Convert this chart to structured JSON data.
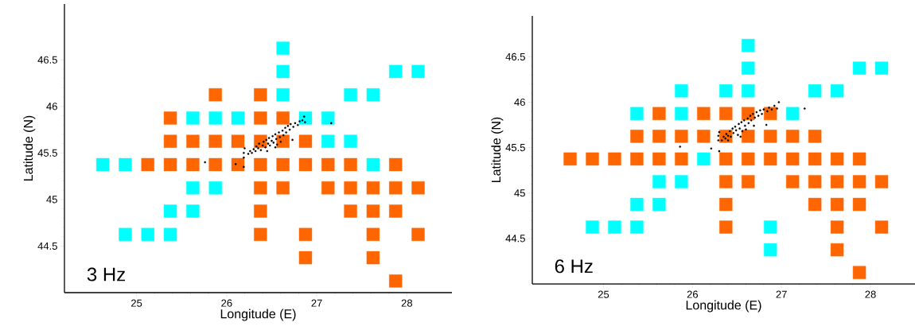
{
  "chart_data": [
    {
      "type": "scatter",
      "xlabel": "Longitude (E)",
      "ylabel": "Latitude (N)",
      "annotations": [
        "3 Hz"
      ],
      "xlim": [
        24.2,
        28.5
      ],
      "ylim": [
        44.0,
        47.1
      ],
      "xticks": [
        25,
        26,
        27,
        28
      ],
      "yticks": [
        44.5,
        45,
        45.5,
        46,
        46.5
      ],
      "series": [
        {
          "color": "#ff6600",
          "marker": "square",
          "x": [
            25.875,
            26.375,
            25.375,
            26.375,
            26.625,
            25.375,
            25.625,
            25.875,
            26.125,
            26.375,
            26.625,
            26.875,
            25.125,
            25.375,
            25.625,
            25.875,
            26.125,
            26.375,
            26.625,
            26.875,
            27.125,
            27.375,
            27.875,
            26.375,
            26.625,
            27.125,
            27.375,
            27.625,
            27.875,
            28.125,
            26.375,
            27.375,
            27.625,
            27.875,
            26.375,
            26.875,
            27.625,
            28.125,
            26.875,
            27.625,
            27.875
          ],
          "values": [
            46.125,
            46.125,
            45.875,
            45.875,
            45.875,
            45.625,
            45.625,
            45.625,
            45.625,
            45.625,
            45.625,
            45.625,
            45.375,
            45.375,
            45.375,
            45.375,
            45.375,
            45.375,
            45.375,
            45.375,
            45.375,
            45.375,
            45.375,
            45.125,
            45.125,
            45.125,
            45.125,
            45.125,
            45.125,
            45.125,
            44.875,
            44.875,
            44.875,
            44.875,
            44.625,
            44.625,
            44.625,
            44.625,
            44.375,
            44.375,
            44.125
          ]
        },
        {
          "color": "#00ffff",
          "marker": "square",
          "x": [
            26.625,
            26.625,
            27.875,
            28.125,
            26.625,
            27.375,
            27.625,
            25.625,
            25.875,
            26.125,
            26.875,
            27.125,
            27.125,
            27.375,
            24.625,
            24.875,
            27.625,
            25.625,
            25.875,
            25.375,
            25.625,
            24.875,
            25.125,
            25.375
          ],
          "values": [
            46.625,
            46.375,
            46.375,
            46.375,
            46.125,
            46.125,
            46.125,
            45.875,
            45.875,
            45.875,
            45.875,
            45.875,
            45.625,
            45.625,
            45.375,
            45.375,
            45.375,
            45.125,
            45.125,
            44.875,
            44.875,
            44.625,
            44.625,
            44.625
          ]
        },
        {
          "color": "#000000",
          "marker": "circle",
          "x": [
            25.76,
            26.1,
            26.19,
            26.19,
            26.19,
            26.2,
            26.24,
            26.26,
            26.28,
            26.3,
            26.32,
            26.33,
            26.35,
            26.36,
            26.38,
            26.4,
            26.41,
            26.43,
            26.44,
            26.46,
            26.47,
            26.48,
            26.5,
            26.51,
            26.52,
            26.54,
            26.55,
            26.56,
            26.58,
            26.59,
            26.6,
            26.62,
            26.63,
            26.65,
            26.66,
            26.68,
            26.7,
            26.71,
            26.73,
            26.74,
            26.76,
            26.79,
            26.81,
            26.84,
            26.86,
            26.87,
            27.16,
            26.54,
            26.45
          ],
          "values": [
            45.4,
            45.38,
            45.35,
            45.45,
            45.5,
            45.55,
            45.49,
            45.52,
            45.5,
            45.54,
            45.52,
            45.57,
            45.55,
            45.6,
            45.53,
            45.58,
            45.62,
            45.56,
            45.64,
            45.6,
            45.66,
            45.58,
            45.63,
            45.68,
            45.61,
            45.7,
            45.65,
            45.59,
            45.72,
            45.67,
            45.62,
            45.74,
            45.69,
            45.77,
            45.72,
            45.79,
            45.75,
            45.81,
            45.64,
            45.78,
            45.82,
            45.8,
            45.84,
            45.85,
            45.89,
            45.83,
            45.82,
            45.56,
            45.52
          ]
        }
      ]
    },
    {
      "type": "scatter",
      "xlabel": "Longitude (E)",
      "ylabel": "Latitude (N)",
      "annotations": [
        "6 Hz"
      ],
      "xlim": [
        24.2,
        28.5
      ],
      "ylim": [
        44.0,
        46.95
      ],
      "xticks": [
        25,
        26,
        27,
        28
      ],
      "yticks": [
        44.5,
        45,
        45.5,
        46,
        46.5
      ],
      "series": [
        {
          "color": "#ff6600",
          "marker": "square",
          "x": [
            25.625,
            26.125,
            26.375,
            26.625,
            26.875,
            25.375,
            25.625,
            25.875,
            26.125,
            26.375,
            26.625,
            26.875,
            27.125,
            27.375,
            24.625,
            24.875,
            25.125,
            25.375,
            25.625,
            25.875,
            26.375,
            26.625,
            26.875,
            27.125,
            27.375,
            27.625,
            27.875,
            26.375,
            26.625,
            27.125,
            27.375,
            27.625,
            27.875,
            28.125,
            26.375,
            27.375,
            27.625,
            27.875,
            26.375,
            27.625,
            28.125,
            27.625,
            27.875
          ],
          "values": [
            45.875,
            45.875,
            45.875,
            45.875,
            45.875,
            45.625,
            45.625,
            45.625,
            45.625,
            45.625,
            45.625,
            45.625,
            45.625,
            45.625,
            45.375,
            45.375,
            45.375,
            45.375,
            45.375,
            45.375,
            45.375,
            45.375,
            45.375,
            45.375,
            45.375,
            45.375,
            45.375,
            45.125,
            45.125,
            45.125,
            45.125,
            45.125,
            45.125,
            45.125,
            44.875,
            44.875,
            44.875,
            44.875,
            44.625,
            44.625,
            44.625,
            44.375,
            44.125
          ]
        },
        {
          "color": "#00ffff",
          "marker": "square",
          "x": [
            26.625,
            26.625,
            27.875,
            28.125,
            25.875,
            26.375,
            26.625,
            27.375,
            27.625,
            25.375,
            25.875,
            27.125,
            26.125,
            25.625,
            25.875,
            25.375,
            25.625,
            24.875,
            25.125,
            25.375,
            26.875,
            26.875
          ],
          "values": [
            46.625,
            46.375,
            46.375,
            46.375,
            46.125,
            46.125,
            46.125,
            46.125,
            46.125,
            45.875,
            45.875,
            45.875,
            45.375,
            45.125,
            45.125,
            44.875,
            44.875,
            44.625,
            44.625,
            44.625,
            44.625,
            44.375
          ]
        },
        {
          "color": "#000000",
          "marker": "circle",
          "x": [
            25.86,
            26.21,
            26.3,
            26.29,
            26.29,
            26.3,
            26.33,
            26.35,
            26.37,
            26.38,
            26.4,
            26.42,
            26.43,
            26.45,
            26.46,
            26.48,
            26.49,
            26.51,
            26.52,
            26.53,
            26.55,
            26.56,
            26.58,
            26.59,
            26.6,
            26.62,
            26.63,
            26.65,
            26.66,
            26.68,
            26.69,
            26.7,
            26.72,
            26.74,
            26.76,
            26.78,
            26.8,
            26.83,
            26.84,
            26.86,
            26.89,
            26.92,
            26.95,
            26.97,
            27.26,
            26.54,
            26.4
          ],
          "values": [
            45.51,
            45.49,
            45.46,
            45.58,
            45.63,
            45.67,
            45.58,
            45.62,
            45.6,
            45.65,
            45.63,
            45.68,
            45.62,
            45.71,
            45.66,
            45.73,
            45.69,
            45.64,
            45.76,
            45.71,
            45.78,
            45.68,
            45.8,
            45.74,
            45.7,
            45.82,
            45.77,
            45.85,
            45.8,
            45.87,
            45.74,
            45.83,
            45.89,
            45.85,
            45.91,
            45.87,
            45.92,
            45.75,
            45.9,
            45.94,
            45.92,
            45.96,
            45.93,
            46.0,
            45.93,
            45.62,
            45.58
          ]
        }
      ]
    }
  ]
}
